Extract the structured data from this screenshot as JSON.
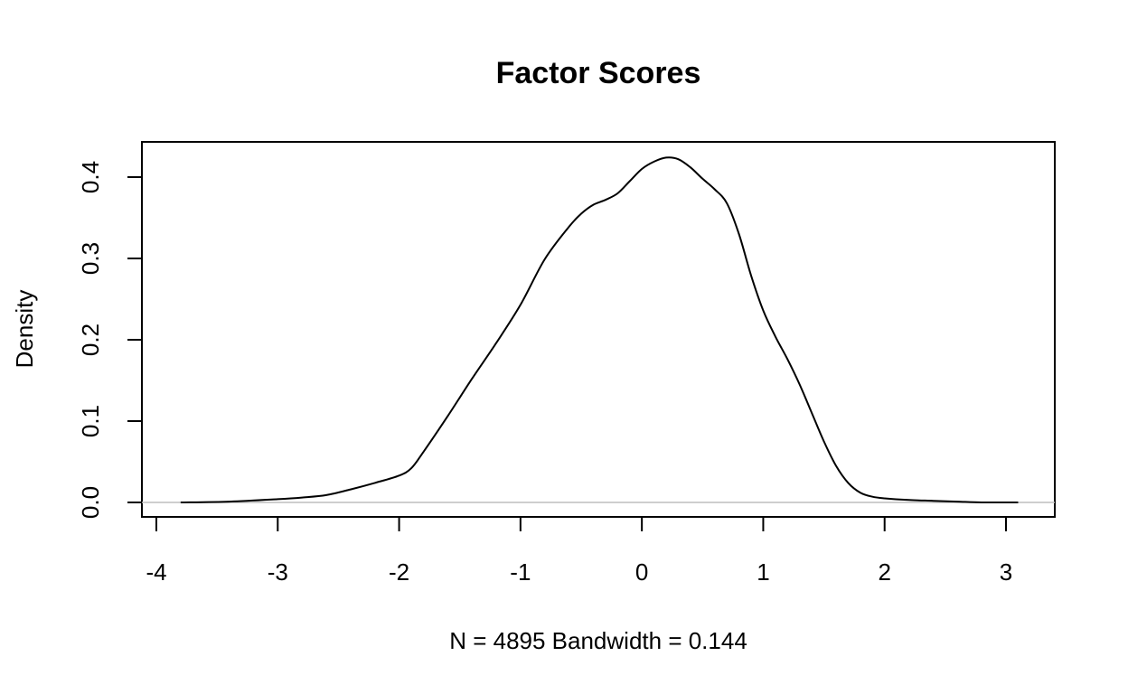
{
  "chart_data": {
    "type": "line",
    "title": "Factor Scores",
    "xlabel": "N = 4895   Bandwidth = 0.144",
    "ylabel": "Density",
    "xlim": [
      -4,
      3
    ],
    "ylim": [
      0,
      0.4
    ],
    "x_ticks": [
      "-4",
      "-3",
      "-2",
      "-1",
      "0",
      "1",
      "2",
      "3"
    ],
    "y_ticks": [
      "0.0",
      "0.1",
      "0.2",
      "0.3",
      "0.4"
    ],
    "grid": false,
    "legend": "none",
    "series": [
      {
        "x": [
          -3.8,
          -3.4,
          -3.0,
          -2.8,
          -2.6,
          -2.4,
          -2.2,
          -2.0,
          -1.9,
          -1.8,
          -1.6,
          -1.4,
          -1.2,
          -1.0,
          -0.8,
          -0.6,
          -0.5,
          -0.4,
          -0.3,
          -0.2,
          -0.1,
          0.0,
          0.1,
          0.2,
          0.3,
          0.4,
          0.5,
          0.6,
          0.7,
          0.8,
          0.9,
          1.0,
          1.1,
          1.2,
          1.3,
          1.4,
          1.5,
          1.6,
          1.7,
          1.8,
          1.9,
          2.0,
          2.2,
          2.4,
          2.6,
          2.8,
          3.1
        ],
        "y": [
          0.0,
          0.001,
          0.004,
          0.006,
          0.009,
          0.016,
          0.024,
          0.033,
          0.042,
          0.062,
          0.106,
          0.152,
          0.196,
          0.243,
          0.299,
          0.339,
          0.355,
          0.366,
          0.372,
          0.38,
          0.395,
          0.41,
          0.419,
          0.424,
          0.422,
          0.412,
          0.398,
          0.385,
          0.368,
          0.33,
          0.279,
          0.236,
          0.204,
          0.176,
          0.145,
          0.11,
          0.075,
          0.045,
          0.024,
          0.012,
          0.007,
          0.005,
          0.003,
          0.002,
          0.001,
          0.0,
          0.0
        ]
      }
    ],
    "colors": {
      "line": "#000000",
      "zero_line": "#bebebe",
      "frame": "#000000"
    }
  }
}
